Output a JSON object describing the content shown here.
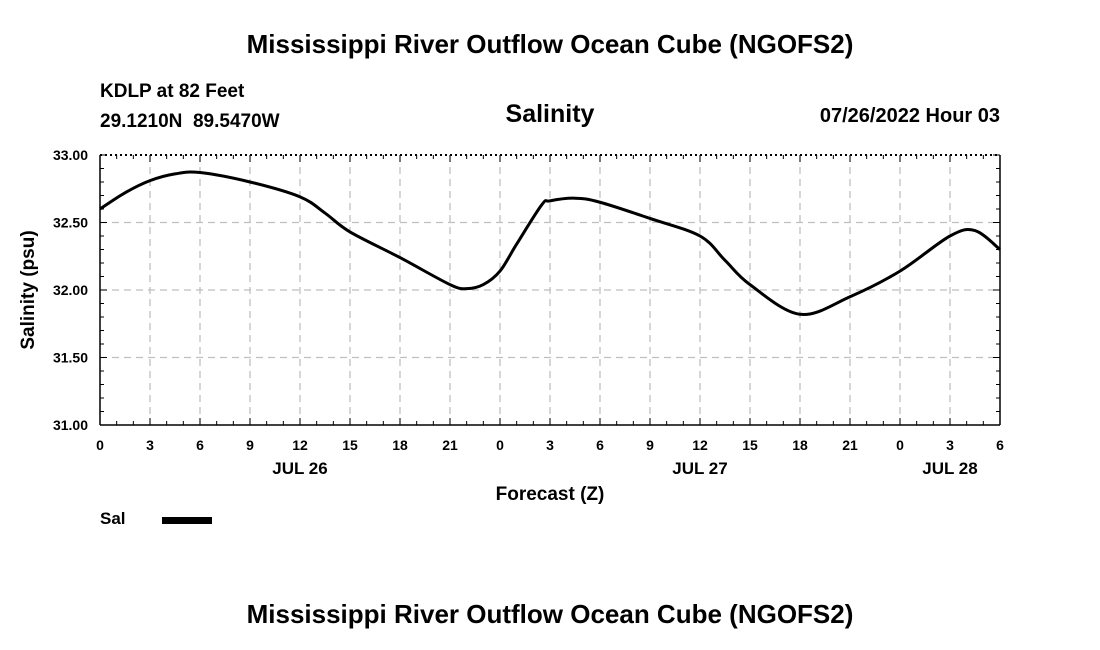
{
  "header": {
    "title": "Mississippi River Outflow Ocean Cube (NGOFS2)",
    "station": "KDLP at 82 Feet",
    "coords": "29.1210N  89.5470W",
    "variable": "Salinity",
    "datetime": "07/26/2022 Hour 03"
  },
  "footer": {
    "title": "Mississippi River Outflow Ocean Cube (NGOFS2)"
  },
  "legend": {
    "label": "Sal"
  },
  "chart_data": {
    "type": "line",
    "title": "Salinity",
    "xlabel": "Forecast (Z)",
    "ylabel": "Salinity (psu)",
    "ylim": [
      31.0,
      33.0
    ],
    "xlim": [
      0,
      54
    ],
    "x_unit": "hours from 00Z Jul 26",
    "yticks": [
      "31.00",
      "31.50",
      "32.00",
      "32.50",
      "33.00"
    ],
    "xticks": [
      "0",
      "3",
      "6",
      "9",
      "12",
      "15",
      "18",
      "21",
      "0",
      "3",
      "6",
      "9",
      "12",
      "15",
      "18",
      "21",
      "0",
      "3",
      "6"
    ],
    "date_labels": [
      {
        "label": "JUL 26",
        "x": 12
      },
      {
        "label": "JUL 27",
        "x": 36
      },
      {
        "label": "JUL 28",
        "x": 51
      }
    ],
    "grid": true,
    "series": [
      {
        "name": "Sal",
        "x": [
          0,
          1.5,
          3,
          4.5,
          6,
          9,
          12,
          13.5,
          15,
          18,
          21,
          22,
          23,
          24,
          25,
          26.5,
          27,
          28.5,
          30,
          33,
          36,
          37.5,
          39,
          42,
          45,
          48,
          51,
          52.5,
          54
        ],
        "y": [
          32.6,
          32.72,
          32.81,
          32.86,
          32.87,
          32.8,
          32.69,
          32.57,
          32.43,
          32.24,
          32.04,
          32.01,
          32.04,
          32.14,
          32.34,
          32.63,
          32.66,
          32.68,
          32.65,
          32.53,
          32.4,
          32.22,
          32.04,
          31.82,
          31.95,
          32.14,
          32.4,
          32.44,
          32.3
        ]
      }
    ]
  }
}
